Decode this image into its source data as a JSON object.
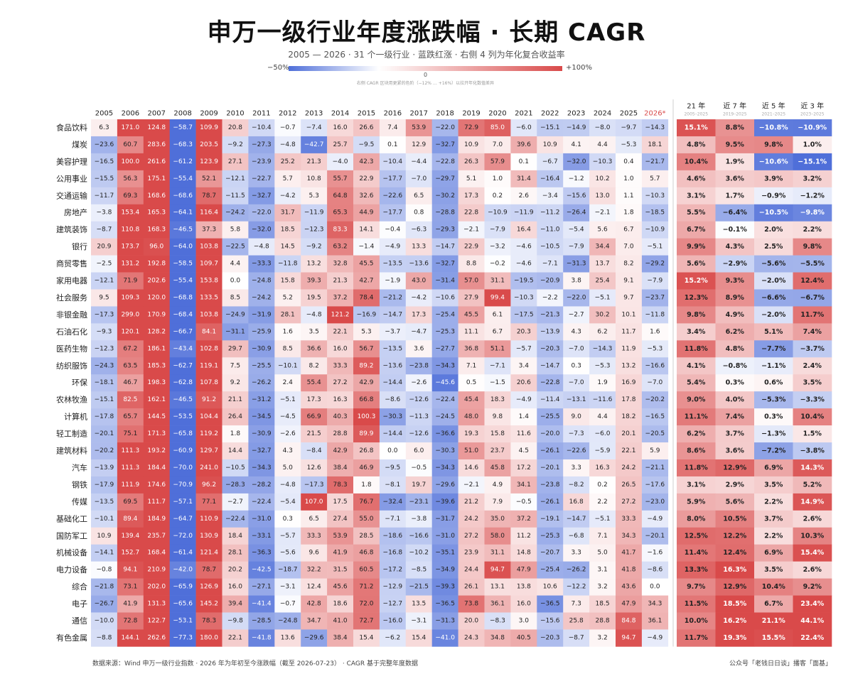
{
  "header": {
    "title": "申万一级行业年度涨跌幅 · 长期 CAGR",
    "subtitle": "2005 — 2026 · 31 个一级行业 · 蓝跌红涨 · 右侧 4 列为年化复合收益率"
  },
  "scale": {
    "min_label": "−50%",
    "max_label": "+100%",
    "mid_label": "0",
    "note": "右侧 CAGR 区块用更紧的色阶（−12% … +16%）以拉开年化数值差异",
    "colors": {
      "negative": "#4f6fd9",
      "neutral": "#ffffff",
      "positive": "#d94a4a"
    }
  },
  "chart_data": {
    "type": "heatmap",
    "title": "申万一级行业年度涨跌幅 · 长期 CAGR",
    "year_columns": [
      "2005",
      "2006",
      "2007",
      "2008",
      "2009",
      "2010",
      "2011",
      "2012",
      "2013",
      "2014",
      "2015",
      "2016",
      "2017",
      "2018",
      "2019",
      "2020",
      "2021",
      "2022",
      "2023",
      "2024",
      "2025",
      "2026*"
    ],
    "cagr_columns": [
      {
        "label": "21 年",
        "sub": "2005–2025"
      },
      {
        "label": "近 7 年",
        "sub": "2019–2025"
      },
      {
        "label": "近 5 年",
        "sub": "2021–2025"
      },
      {
        "label": "近 3 年",
        "sub": "2023–2025"
      }
    ],
    "year_color_range": [
      -50,
      100
    ],
    "cagr_color_range": [
      -12,
      16
    ],
    "rows": [
      {
        "industry": "食品饮料",
        "values": [
          "6.3",
          "171.0",
          "124.8",
          "-58.7",
          "109.9",
          "20.8",
          "-10.4",
          "-0.7",
          "-7.4",
          "16.0",
          "26.6",
          "7.4",
          "53.9",
          "-22.0",
          "72.9",
          "85.0",
          "-6.0",
          "-15.1",
          "-14.9",
          "-8.0",
          "-9.7",
          "-14.3"
        ],
        "cagr": [
          "15.1%",
          "8.8%",
          "-10.8%",
          "-10.9%"
        ]
      },
      {
        "industry": "煤炭",
        "values": [
          "-23.6",
          "60.7",
          "283.6",
          "-68.3",
          "203.5",
          "-9.2",
          "-27.3",
          "-4.8",
          "-42.7",
          "25.7",
          "-9.5",
          "0.1",
          "12.9",
          "-32.7",
          "10.9",
          "7.0",
          "39.6",
          "10.9",
          "4.1",
          "4.4",
          "-5.3",
          "18.1"
        ],
        "cagr": [
          "4.8%",
          "9.5%",
          "9.8%",
          "1.0%"
        ]
      },
      {
        "industry": "美容护理",
        "values": [
          "-16.5",
          "100.0",
          "261.6",
          "-61.2",
          "123.9",
          "27.1",
          "-23.9",
          "25.2",
          "21.3",
          "-4.0",
          "42.3",
          "-10.4",
          "-4.4",
          "-22.8",
          "26.3",
          "57.9",
          "0.1",
          "-6.7",
          "-32.0",
          "-10.3",
          "0.4",
          "-21.7"
        ],
        "cagr": [
          "10.4%",
          "1.9%",
          "-10.6%",
          "-15.1%"
        ]
      },
      {
        "industry": "公用事业",
        "values": [
          "-15.5",
          "56.3",
          "175.1",
          "-55.4",
          "52.1",
          "-12.1",
          "-22.7",
          "5.7",
          "10.8",
          "55.7",
          "22.9",
          "-17.7",
          "-7.0",
          "-29.7",
          "5.1",
          "1.0",
          "31.4",
          "-16.4",
          "-1.2",
          "10.2",
          "1.0",
          "5.7"
        ],
        "cagr": [
          "4.6%",
          "3.6%",
          "3.9%",
          "3.2%"
        ]
      },
      {
        "industry": "交通运输",
        "values": [
          "-11.7",
          "69.3",
          "168.6",
          "-68.6",
          "78.7",
          "-11.5",
          "-32.7",
          "-4.2",
          "5.3",
          "64.8",
          "32.6",
          "-22.6",
          "6.5",
          "-30.2",
          "17.3",
          "0.2",
          "2.6",
          "-3.4",
          "-15.6",
          "13.0",
          "1.1",
          "-10.3"
        ],
        "cagr": [
          "3.1%",
          "1.7%",
          "-0.9%",
          "-1.2%"
        ]
      },
      {
        "industry": "房地产",
        "values": [
          "-3.8",
          "153.4",
          "165.3",
          "-64.1",
          "116.4",
          "-24.2",
          "-22.0",
          "31.7",
          "-11.9",
          "65.3",
          "44.9",
          "-17.7",
          "0.8",
          "-28.8",
          "22.8",
          "-10.9",
          "-11.9",
          "-11.2",
          "-26.4",
          "-2.1",
          "1.8",
          "-18.5"
        ],
        "cagr": [
          "5.5%",
          "-6.4%",
          "-10.5%",
          "-9.8%"
        ]
      },
      {
        "industry": "建筑装饰",
        "values": [
          "-8.7",
          "110.8",
          "168.3",
          "-46.5",
          "37.3",
          "5.8",
          "-32.0",
          "18.5",
          "-12.3",
          "83.3",
          "14.1",
          "-0.4",
          "-6.3",
          "-29.3",
          "-2.1",
          "-7.9",
          "16.4",
          "-11.0",
          "-5.4",
          "5.6",
          "6.7",
          "-10.9"
        ],
        "cagr": [
          "6.7%",
          "-0.1%",
          "2.0%",
          "2.2%"
        ]
      },
      {
        "industry": "银行",
        "values": [
          "20.9",
          "173.7",
          "96.0",
          "-64.0",
          "103.8",
          "-22.5",
          "-4.8",
          "14.5",
          "-9.2",
          "63.2",
          "-1.4",
          "-4.9",
          "13.3",
          "-14.7",
          "22.9",
          "-3.2",
          "-4.6",
          "-10.5",
          "-7.9",
          "34.4",
          "7.0",
          "-5.1"
        ],
        "cagr": [
          "9.9%",
          "4.3%",
          "2.5%",
          "9.8%"
        ]
      },
      {
        "industry": "商贸零售",
        "values": [
          "-2.5",
          "131.2",
          "192.8",
          "-58.5",
          "109.7",
          "4.4",
          "-33.3",
          "-11.8",
          "13.2",
          "32.8",
          "45.5",
          "-13.5",
          "-13.6",
          "-32.7",
          "8.8",
          "-0.2",
          "-4.6",
          "-7.1",
          "-31.3",
          "13.7",
          "8.2",
          "-29.2"
        ],
        "cagr": [
          "5.6%",
          "-2.9%",
          "-5.6%",
          "-5.5%"
        ]
      },
      {
        "industry": "家用电器",
        "values": [
          "-12.1",
          "71.9",
          "202.6",
          "-55.4",
          "153.8",
          "0.0",
          "-24.8",
          "15.8",
          "39.3",
          "21.3",
          "42.7",
          "-1.9",
          "43.0",
          "-31.4",
          "57.0",
          "31.1",
          "-19.5",
          "-20.9",
          "3.8",
          "25.4",
          "9.1",
          "-7.9"
        ],
        "cagr": [
          "15.2%",
          "9.3%",
          "-2.0%",
          "12.4%"
        ]
      },
      {
        "industry": "社会服务",
        "values": [
          "9.5",
          "109.3",
          "120.0",
          "-68.8",
          "133.5",
          "8.5",
          "-24.2",
          "5.2",
          "19.5",
          "37.2",
          "78.4",
          "-21.2",
          "-4.2",
          "-10.6",
          "27.9",
          "99.4",
          "-10.3",
          "-2.2",
          "-22.0",
          "-5.1",
          "9.7",
          "-23.7"
        ],
        "cagr": [
          "12.3%",
          "8.9%",
          "-6.6%",
          "-6.7%"
        ]
      },
      {
        "industry": "非银金融",
        "values": [
          "-17.3",
          "299.0",
          "170.9",
          "-68.4",
          "103.8",
          "-24.9",
          "-31.9",
          "28.1",
          "-4.8",
          "121.2",
          "-16.9",
          "-14.7",
          "17.3",
          "-25.4",
          "45.5",
          "6.1",
          "-17.5",
          "-21.3",
          "-2.7",
          "30.2",
          "10.1",
          "-11.8"
        ],
        "cagr": [
          "9.8%",
          "4.9%",
          "-2.0%",
          "11.7%"
        ]
      },
      {
        "industry": "石油石化",
        "values": [
          "-9.3",
          "120.1",
          "128.2",
          "-66.7",
          "84.1",
          "-31.1",
          "-25.9",
          "1.6",
          "3.5",
          "22.1",
          "5.3",
          "-3.7",
          "-4.7",
          "-25.3",
          "11.1",
          "6.7",
          "20.3",
          "-13.9",
          "4.3",
          "6.2",
          "11.7",
          "1.6"
        ],
        "cagr": [
          "3.4%",
          "6.2%",
          "5.1%",
          "7.4%"
        ]
      },
      {
        "industry": "医药生物",
        "values": [
          "-12.3",
          "67.2",
          "186.1",
          "-43.4",
          "102.8",
          "29.7",
          "-30.9",
          "8.5",
          "36.6",
          "16.0",
          "56.7",
          "-13.5",
          "3.6",
          "-27.7",
          "36.8",
          "51.1",
          "-5.7",
          "-20.3",
          "-7.0",
          "-14.3",
          "11.9",
          "-5.3"
        ],
        "cagr": [
          "11.8%",
          "4.8%",
          "-7.7%",
          "-3.7%"
        ]
      },
      {
        "industry": "纺织服饰",
        "values": [
          "-24.3",
          "63.5",
          "185.3",
          "-62.7",
          "119.1",
          "7.5",
          "-25.5",
          "-10.1",
          "8.2",
          "33.3",
          "89.2",
          "-13.6",
          "-23.8",
          "-34.3",
          "7.1",
          "-7.1",
          "3.4",
          "-14.7",
          "0.3",
          "-5.3",
          "13.2",
          "-16.6"
        ],
        "cagr": [
          "4.1%",
          "-0.8%",
          "-1.1%",
          "2.4%"
        ]
      },
      {
        "industry": "环保",
        "values": [
          "-18.1",
          "46.7",
          "198.3",
          "-62.8",
          "107.8",
          "9.2",
          "-26.2",
          "2.4",
          "55.4",
          "27.2",
          "42.9",
          "-14.4",
          "-2.6",
          "-45.6",
          "0.5",
          "-1.5",
          "20.6",
          "-22.8",
          "-7.0",
          "1.9",
          "16.9",
          "-7.0"
        ],
        "cagr": [
          "5.4%",
          "0.3%",
          "0.6%",
          "3.5%"
        ]
      },
      {
        "industry": "农林牧渔",
        "values": [
          "-15.1",
          "82.5",
          "162.1",
          "-46.5",
          "91.2",
          "21.1",
          "-31.2",
          "-5.1",
          "17.3",
          "16.3",
          "66.8",
          "-8.6",
          "-12.6",
          "-22.4",
          "45.4",
          "18.3",
          "-4.9",
          "-11.4",
          "-13.1",
          "-11.6",
          "17.8",
          "-20.2"
        ],
        "cagr": [
          "9.0%",
          "4.0%",
          "-5.3%",
          "-3.3%"
        ]
      },
      {
        "industry": "计算机",
        "values": [
          "-17.8",
          "65.7",
          "144.5",
          "-53.5",
          "104.4",
          "26.4",
          "-34.5",
          "-4.5",
          "66.9",
          "40.3",
          "100.3",
          "-30.3",
          "-11.3",
          "-24.5",
          "48.0",
          "9.8",
          "1.4",
          "-25.5",
          "9.0",
          "4.4",
          "18.2",
          "-16.5"
        ],
        "cagr": [
          "11.1%",
          "7.4%",
          "0.3%",
          "10.4%"
        ]
      },
      {
        "industry": "轻工制造",
        "values": [
          "-20.1",
          "75.1",
          "171.3",
          "-65.8",
          "119.2",
          "1.8",
          "-30.9",
          "-2.6",
          "21.5",
          "28.8",
          "89.9",
          "-14.4",
          "-12.6",
          "-36.6",
          "19.3",
          "15.8",
          "11.6",
          "-20.0",
          "-7.3",
          "-6.0",
          "20.1",
          "-20.5"
        ],
        "cagr": [
          "6.2%",
          "3.7%",
          "-1.3%",
          "1.5%"
        ]
      },
      {
        "industry": "建筑材料",
        "values": [
          "-20.2",
          "111.3",
          "193.2",
          "-60.9",
          "129.7",
          "14.4",
          "-32.7",
          "4.3",
          "-8.4",
          "42.9",
          "26.8",
          "0.0",
          "6.0",
          "-30.3",
          "51.0",
          "23.7",
          "4.5",
          "-26.1",
          "-22.6",
          "-5.9",
          "22.1",
          "5.9"
        ],
        "cagr": [
          "8.6%",
          "3.6%",
          "-7.2%",
          "-3.8%"
        ]
      },
      {
        "industry": "汽车",
        "values": [
          "-13.9",
          "111.3",
          "184.4",
          "-70.0",
          "241.0",
          "-10.5",
          "-34.3",
          "5.0",
          "12.6",
          "38.4",
          "46.9",
          "-9.5",
          "-0.5",
          "-34.3",
          "14.6",
          "45.8",
          "17.2",
          "-20.1",
          "3.3",
          "16.3",
          "24.2",
          "-21.1"
        ],
        "cagr": [
          "11.8%",
          "12.9%",
          "6.9%",
          "14.3%"
        ]
      },
      {
        "industry": "钢铁",
        "values": [
          "-17.9",
          "111.9",
          "174.6",
          "-70.9",
          "96.2",
          "-28.3",
          "-28.2",
          "-4.8",
          "-17.3",
          "78.3",
          "1.8",
          "-8.1",
          "19.7",
          "-29.6",
          "-2.1",
          "4.9",
          "34.1",
          "-23.8",
          "-8.2",
          "0.2",
          "26.5",
          "-17.6"
        ],
        "cagr": [
          "3.1%",
          "2.9%",
          "3.5%",
          "5.2%"
        ]
      },
      {
        "industry": "传媒",
        "values": [
          "-13.5",
          "69.5",
          "111.7",
          "-57.1",
          "77.1",
          "-2.7",
          "-22.4",
          "-5.4",
          "107.0",
          "17.5",
          "76.7",
          "-32.4",
          "-23.1",
          "-39.6",
          "21.2",
          "7.9",
          "-0.5",
          "-26.1",
          "16.8",
          "2.2",
          "27.2",
          "-23.0"
        ],
        "cagr": [
          "5.9%",
          "5.6%",
          "2.2%",
          "14.9%"
        ]
      },
      {
        "industry": "基础化工",
        "values": [
          "-10.1",
          "89.4",
          "184.9",
          "-64.7",
          "110.9",
          "-22.4",
          "-31.0",
          "0.3",
          "6.5",
          "27.4",
          "55.0",
          "-7.1",
          "-3.8",
          "-31.7",
          "24.2",
          "35.0",
          "37.2",
          "-19.1",
          "-14.7",
          "-5.1",
          "33.3",
          "-4.9"
        ],
        "cagr": [
          "8.0%",
          "10.5%",
          "3.7%",
          "2.6%"
        ]
      },
      {
        "industry": "国防军工",
        "values": [
          "10.9",
          "139.4",
          "235.7",
          "-72.0",
          "130.9",
          "18.4",
          "-33.1",
          "-5.7",
          "33.3",
          "53.9",
          "28.5",
          "-18.6",
          "-16.6",
          "-31.0",
          "27.2",
          "58.0",
          "11.2",
          "-25.3",
          "-6.8",
          "7.1",
          "34.3",
          "-20.1"
        ],
        "cagr": [
          "12.5%",
          "12.2%",
          "2.2%",
          "10.3%"
        ]
      },
      {
        "industry": "机械设备",
        "values": [
          "-14.1",
          "152.7",
          "168.4",
          "-61.4",
          "121.4",
          "28.1",
          "-36.3",
          "-5.6",
          "9.6",
          "41.9",
          "46.8",
          "-16.8",
          "-10.2",
          "-35.1",
          "23.9",
          "31.1",
          "14.8",
          "-20.7",
          "3.3",
          "5.0",
          "41.7",
          "-1.6"
        ],
        "cagr": [
          "11.4%",
          "12.4%",
          "6.9%",
          "15.4%"
        ]
      },
      {
        "industry": "电力设备",
        "values": [
          "-0.8",
          "94.1",
          "210.9",
          "-42.0",
          "78.7",
          "20.2",
          "-42.5",
          "-18.7",
          "32.2",
          "31.5",
          "60.5",
          "-17.2",
          "-8.5",
          "-34.9",
          "24.4",
          "94.7",
          "47.9",
          "-25.4",
          "-26.2",
          "3.1",
          "41.8",
          "-8.6"
        ],
        "cagr": [
          "13.3%",
          "16.3%",
          "3.5%",
          "2.6%"
        ]
      },
      {
        "industry": "综合",
        "values": [
          "-21.8",
          "73.1",
          "202.0",
          "-65.9",
          "126.9",
          "16.0",
          "-27.1",
          "-3.1",
          "12.4",
          "45.6",
          "71.2",
          "-12.9",
          "-21.5",
          "-39.3",
          "26.1",
          "13.1",
          "13.8",
          "10.6",
          "-12.2",
          "3.2",
          "43.6",
          "0.0"
        ],
        "cagr": [
          "9.7%",
          "12.9%",
          "10.4%",
          "9.2%"
        ]
      },
      {
        "industry": "电子",
        "values": [
          "-26.7",
          "41.9",
          "131.3",
          "-65.6",
          "145.2",
          "39.4",
          "-41.4",
          "-0.7",
          "42.8",
          "18.6",
          "72.0",
          "-12.7",
          "13.5",
          "-36.5",
          "73.8",
          "36.1",
          "16.0",
          "-36.5",
          "7.3",
          "18.5",
          "47.9",
          "34.3"
        ],
        "cagr": [
          "11.5%",
          "18.5%",
          "6.7%",
          "23.4%"
        ]
      },
      {
        "industry": "通信",
        "values": [
          "-10.0",
          "72.8",
          "122.7",
          "-53.1",
          "78.3",
          "-9.8",
          "-28.5",
          "-24.8",
          "34.7",
          "41.0",
          "72.7",
          "-16.0",
          "-3.1",
          "-31.3",
          "20.0",
          "-8.3",
          "3.0",
          "-15.6",
          "25.8",
          "28.8",
          "84.8",
          "36.1"
        ],
        "cagr": [
          "10.0%",
          "16.2%",
          "21.1%",
          "44.1%"
        ]
      },
      {
        "industry": "有色金属",
        "values": [
          "-8.8",
          "144.1",
          "262.6",
          "-77.3",
          "180.0",
          "22.1",
          "-41.8",
          "13.6",
          "-29.6",
          "38.4",
          "15.4",
          "-6.2",
          "15.4",
          "-41.0",
          "24.3",
          "34.8",
          "40.5",
          "-20.3",
          "-8.7",
          "3.2",
          "94.7",
          "-4.9"
        ],
        "cagr": [
          "11.7%",
          "19.3%",
          "15.5%",
          "22.4%"
        ]
      }
    ]
  },
  "footer": {
    "source": "数据来源：Wind 申万一级行业指数 · 2026 年为年初至今涨跌幅（截至 2026-07-23） · CAGR 基于完整年度数据",
    "credit": "公众号「老钱日日谈」播客「面基」"
  }
}
